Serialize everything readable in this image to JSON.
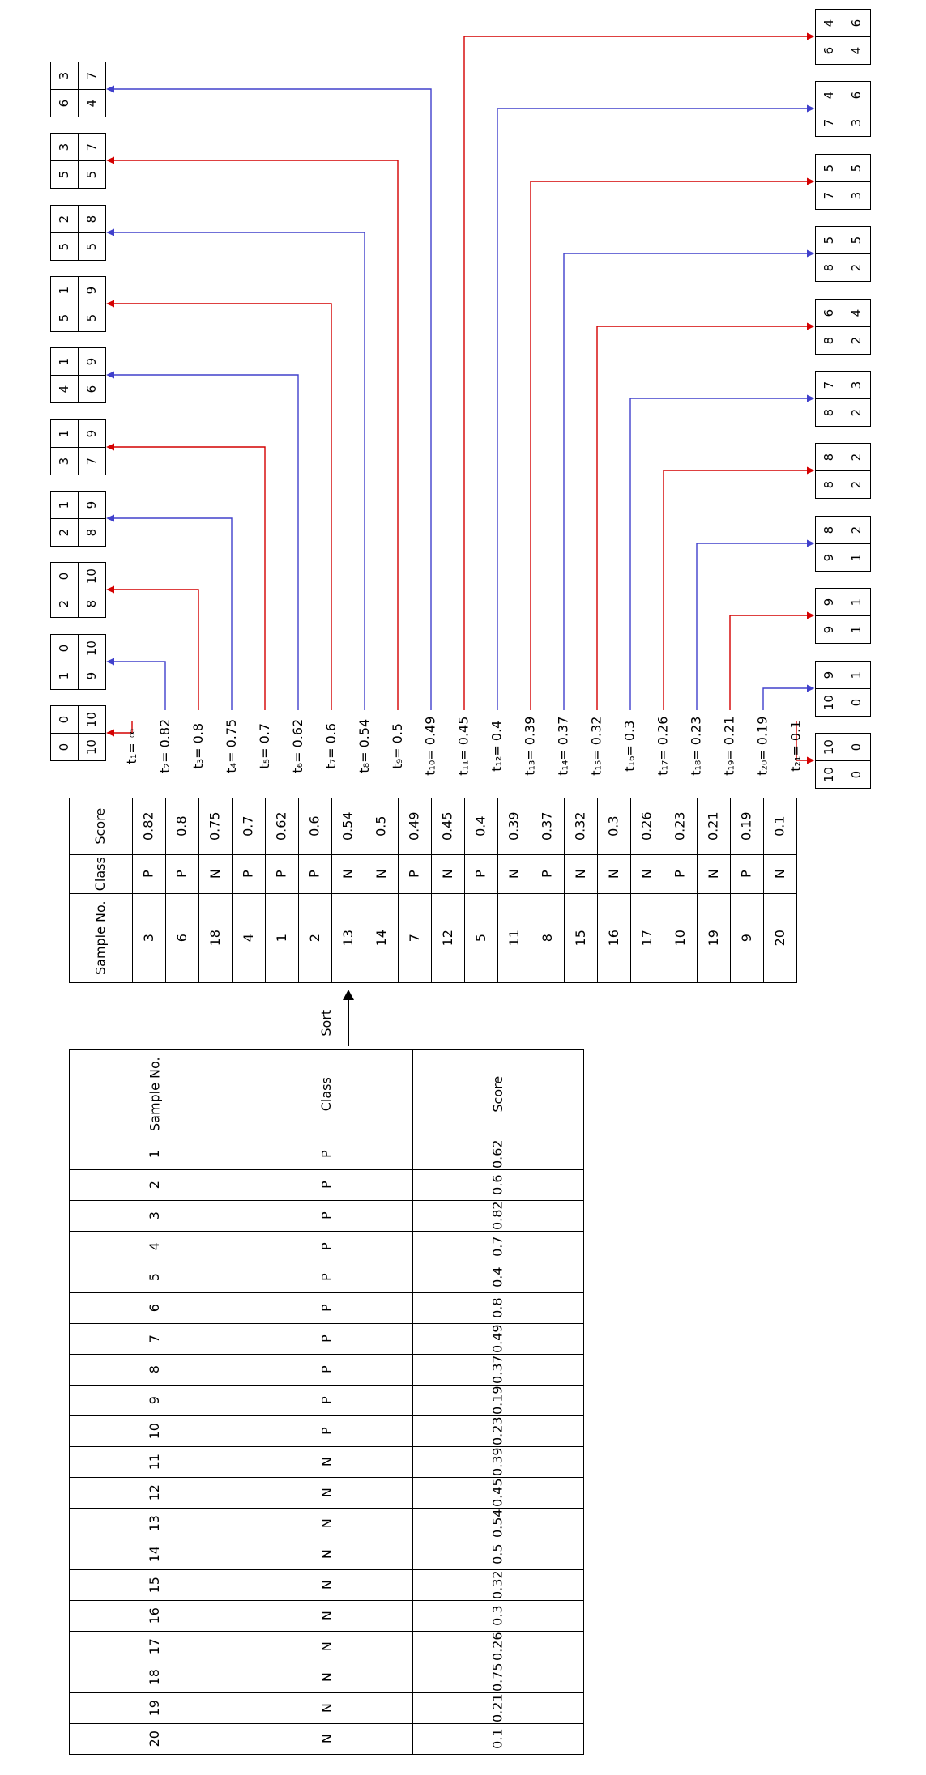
{
  "figure": {
    "background": "#ffffff",
    "border_color": "#000000",
    "arrow_colors": {
      "red": "#d40000",
      "blue": "#4040cc"
    },
    "sort_label": "Sort"
  },
  "unsorted_table": {
    "headers": [
      "Sample No.",
      "Class",
      "Score"
    ],
    "rows": [
      [
        "1",
        "P",
        "0.62"
      ],
      [
        "2",
        "P",
        "0.6"
      ],
      [
        "3",
        "P",
        "0.82"
      ],
      [
        "4",
        "P",
        "0.7"
      ],
      [
        "5",
        "P",
        "0.4"
      ],
      [
        "6",
        "P",
        "0.8"
      ],
      [
        "7",
        "P",
        "0.49"
      ],
      [
        "8",
        "P",
        "0.37"
      ],
      [
        "9",
        "P",
        "0.19"
      ],
      [
        "10",
        "P",
        "0.23"
      ],
      [
        "11",
        "N",
        "0.39"
      ],
      [
        "12",
        "N",
        "0.45"
      ],
      [
        "13",
        "N",
        "0.54"
      ],
      [
        "14",
        "N",
        "0.5"
      ],
      [
        "15",
        "N",
        "0.32"
      ],
      [
        "16",
        "N",
        "0.3"
      ],
      [
        "17",
        "N",
        "0.26"
      ],
      [
        "18",
        "N",
        "0.75"
      ],
      [
        "19",
        "N",
        "0.21"
      ],
      [
        "20",
        "N",
        "0.1"
      ]
    ]
  },
  "sorted_table": {
    "headers": [
      "Sample No.",
      "Class",
      "Score"
    ],
    "rows": [
      [
        "3",
        "P",
        "0.82"
      ],
      [
        "6",
        "P",
        "0.8"
      ],
      [
        "18",
        "N",
        "0.75"
      ],
      [
        "4",
        "P",
        "0.7"
      ],
      [
        "1",
        "P",
        "0.62"
      ],
      [
        "2",
        "P",
        "0.6"
      ],
      [
        "13",
        "N",
        "0.54"
      ],
      [
        "14",
        "N",
        "0.5"
      ],
      [
        "7",
        "P",
        "0.49"
      ],
      [
        "12",
        "N",
        "0.45"
      ],
      [
        "5",
        "P",
        "0.4"
      ],
      [
        "11",
        "N",
        "0.39"
      ],
      [
        "8",
        "P",
        "0.37"
      ],
      [
        "15",
        "N",
        "0.32"
      ],
      [
        "16",
        "N",
        "0.3"
      ],
      [
        "17",
        "N",
        "0.26"
      ],
      [
        "10",
        "P",
        "0.23"
      ],
      [
        "19",
        "N",
        "0.21"
      ],
      [
        "9",
        "P",
        "0.19"
      ],
      [
        "20",
        "N",
        "0.1"
      ]
    ]
  },
  "thresholds": [
    {
      "label": "t₁= ∞",
      "tp": 0,
      "fp": 0,
      "fn": 10,
      "tn": 10,
      "arrow": "red"
    },
    {
      "label": "t₂= 0.82",
      "tp": 1,
      "fp": 0,
      "fn": 9,
      "tn": 10,
      "arrow": "blue"
    },
    {
      "label": "t₃= 0.8",
      "tp": 2,
      "fp": 0,
      "fn": 8,
      "tn": 10,
      "arrow": "red"
    },
    {
      "label": "t₄= 0.75",
      "tp": 2,
      "fp": 1,
      "fn": 8,
      "tn": 9,
      "arrow": "blue"
    },
    {
      "label": "t₅= 0.7",
      "tp": 3,
      "fp": 1,
      "fn": 7,
      "tn": 9,
      "arrow": "red"
    },
    {
      "label": "t₆= 0.62",
      "tp": 4,
      "fp": 1,
      "fn": 6,
      "tn": 9,
      "arrow": "blue"
    },
    {
      "label": "t₇= 0.6",
      "tp": 5,
      "fp": 1,
      "fn": 5,
      "tn": 9,
      "arrow": "red"
    },
    {
      "label": "t₈= 0.54",
      "tp": 5,
      "fp": 2,
      "fn": 5,
      "tn": 8,
      "arrow": "blue"
    },
    {
      "label": "t₉= 0.5",
      "tp": 5,
      "fp": 3,
      "fn": 5,
      "tn": 7,
      "arrow": "red"
    },
    {
      "label": "t₁₀= 0.49",
      "tp": 6,
      "fp": 3,
      "fn": 4,
      "tn": 7,
      "arrow": "blue"
    },
    {
      "label": "t₁₁= 0.45",
      "tp": 6,
      "fp": 4,
      "fn": 4,
      "tn": 6,
      "arrow": "red"
    },
    {
      "label": "t₁₂= 0.4",
      "tp": 7,
      "fp": 4,
      "fn": 3,
      "tn": 6,
      "arrow": "blue"
    },
    {
      "label": "t₁₃= 0.39",
      "tp": 7,
      "fp": 5,
      "fn": 3,
      "tn": 5,
      "arrow": "red"
    },
    {
      "label": "t₁₄= 0.37",
      "tp": 8,
      "fp": 5,
      "fn": 2,
      "tn": 5,
      "arrow": "blue"
    },
    {
      "label": "t₁₅= 0.32",
      "tp": 8,
      "fp": 6,
      "fn": 2,
      "tn": 4,
      "arrow": "red"
    },
    {
      "label": "t₁₆= 0.3",
      "tp": 8,
      "fp": 7,
      "fn": 2,
      "tn": 3,
      "arrow": "blue"
    },
    {
      "label": "t₁₇= 0.26",
      "tp": 8,
      "fp": 8,
      "fn": 2,
      "tn": 2,
      "arrow": "red"
    },
    {
      "label": "t₁₈= 0.23",
      "tp": 9,
      "fp": 8,
      "fn": 1,
      "tn": 2,
      "arrow": "blue"
    },
    {
      "label": "t₁₉= 0.21",
      "tp": 9,
      "fp": 9,
      "fn": 1,
      "tn": 1,
      "arrow": "red"
    },
    {
      "label": "t₂₀= 0.19",
      "tp": 10,
      "fp": 9,
      "fn": 0,
      "tn": 1,
      "arrow": "blue"
    },
    {
      "label": "t₂₁= 0.1",
      "tp": 10,
      "fp": 10,
      "fn": 0,
      "tn": 0,
      "arrow": "red"
    }
  ]
}
